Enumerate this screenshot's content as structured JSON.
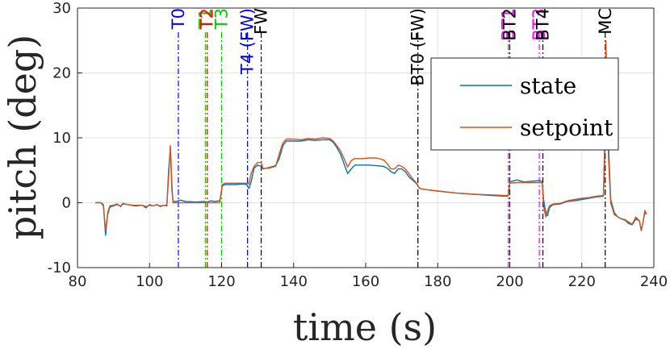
{
  "chart_data": {
    "type": "line",
    "title": "",
    "xlabel": "time (s)",
    "ylabel": "pitch (deg)",
    "xlim": [
      80,
      240
    ],
    "ylim": [
      -10,
      30
    ],
    "xticks": [
      80,
      100,
      120,
      140,
      160,
      180,
      200,
      220,
      240
    ],
    "yticks": [
      -10,
      0,
      10,
      20,
      30
    ],
    "xtick_labels": [
      "80",
      "100",
      "120",
      "140",
      "160",
      "180",
      "200",
      "220",
      "240"
    ],
    "ytick_labels": [
      "-10",
      "0",
      "10",
      "20",
      "30"
    ],
    "grid": true,
    "legend_position": "top-right",
    "series": [
      {
        "name": "state",
        "color": "#0072BD",
        "points": [
          [
            85,
            0
          ],
          [
            86.5,
            0
          ],
          [
            87.2,
            -0.3
          ],
          [
            87.8,
            -5
          ],
          [
            88.4,
            -1.5
          ],
          [
            89,
            -0.5
          ],
          [
            90,
            -0.4
          ],
          [
            91,
            -0.2
          ],
          [
            92,
            -0.6
          ],
          [
            92.6,
            -0.1
          ],
          [
            94,
            -0.3
          ],
          [
            96,
            -0.5
          ],
          [
            98,
            -0.4
          ],
          [
            99,
            -0.8
          ],
          [
            100,
            -0.3
          ],
          [
            101,
            -0.5
          ],
          [
            102,
            -0.3
          ],
          [
            103,
            -0.6
          ],
          [
            104,
            -0.4
          ],
          [
            104.8,
            -0.5
          ],
          [
            105.3,
            5
          ],
          [
            105.8,
            8.5
          ],
          [
            106.2,
            2
          ],
          [
            106.5,
            0.2
          ],
          [
            107.5,
            0.2
          ],
          [
            108.5,
            0.4
          ],
          [
            110,
            0.2
          ],
          [
            113,
            0.1
          ],
          [
            115,
            0.2
          ],
          [
            116,
            0.1
          ],
          [
            117,
            0.3
          ],
          [
            118,
            0.2
          ],
          [
            119.5,
            0.3
          ],
          [
            120.2,
            2.6
          ],
          [
            121,
            2.8
          ],
          [
            124,
            2.8
          ],
          [
            126,
            2.9
          ],
          [
            127,
            2.8
          ],
          [
            127.6,
            2.2
          ],
          [
            128.2,
            3.2
          ],
          [
            129,
            5.3
          ],
          [
            130,
            5.8
          ],
          [
            131,
            5.6
          ],
          [
            131.5,
            5.2
          ],
          [
            133,
            5.4
          ],
          [
            135,
            5.7
          ],
          [
            136,
            6.8
          ],
          [
            137,
            8.8
          ],
          [
            138,
            9.5
          ],
          [
            140,
            9.5
          ],
          [
            142,
            9.5
          ],
          [
            144,
            9.7
          ],
          [
            146,
            9.6
          ],
          [
            148,
            9.7
          ],
          [
            150,
            9.7
          ],
          [
            151,
            9.3
          ],
          [
            152,
            8.5
          ],
          [
            153,
            7.5
          ],
          [
            154,
            6
          ],
          [
            155,
            4.5
          ],
          [
            156,
            5.2
          ],
          [
            157,
            5.8
          ],
          [
            159,
            5.8
          ],
          [
            161,
            5.8
          ],
          [
            163,
            5.7
          ],
          [
            165,
            5.6
          ],
          [
            166,
            5.3
          ],
          [
            167,
            4.8
          ],
          [
            168,
            4.5
          ],
          [
            169,
            5.2
          ],
          [
            170,
            5.2
          ],
          [
            171,
            4.8
          ],
          [
            172,
            4
          ],
          [
            173,
            3.5
          ],
          [
            174,
            3
          ],
          [
            175,
            2.2
          ],
          [
            177,
            2
          ],
          [
            180,
            1.8
          ],
          [
            185,
            1.5
          ],
          [
            190,
            1.3
          ],
          [
            195,
            1.1
          ],
          [
            199,
            1
          ],
          [
            199.5,
            1
          ],
          [
            200,
            3.2
          ],
          [
            202,
            3.5
          ],
          [
            204,
            3.2
          ],
          [
            206,
            3.3
          ],
          [
            208,
            3.4
          ],
          [
            209,
            3.3
          ],
          [
            209.4,
            0.5
          ],
          [
            210,
            -1.5
          ],
          [
            210.5,
            -2
          ],
          [
            211,
            -0.8
          ],
          [
            212,
            -0.3
          ],
          [
            214,
            -0.2
          ],
          [
            216,
            0.2
          ],
          [
            218,
            0.3
          ],
          [
            220,
            0.5
          ],
          [
            222,
            0.7
          ],
          [
            224,
            0.9
          ],
          [
            226,
            1
          ],
          [
            226.3,
            8
          ],
          [
            226.7,
            23
          ],
          [
            227,
            17
          ],
          [
            227.4,
            9
          ],
          [
            228,
            0.5
          ],
          [
            229,
            -1.5
          ],
          [
            230,
            -2.2
          ],
          [
            231,
            -2.5
          ],
          [
            232,
            -2.7
          ],
          [
            233,
            -3.2
          ],
          [
            234,
            -3.4
          ],
          [
            235,
            -2.5
          ],
          [
            236,
            -2.8
          ],
          [
            236.5,
            -4.3
          ],
          [
            237,
            -3
          ],
          [
            237.5,
            -1.5
          ],
          [
            238,
            -1.8
          ]
        ]
      },
      {
        "name": "setpoint",
        "color": "#D95319",
        "points": [
          [
            85,
            0
          ],
          [
            86.5,
            0
          ],
          [
            87.2,
            -0.5
          ],
          [
            87.8,
            -4.2
          ],
          [
            88.4,
            -1.8
          ],
          [
            89,
            -0.7
          ],
          [
            90,
            -0.5
          ],
          [
            91,
            -0.3
          ],
          [
            92,
            -0.5
          ],
          [
            92.6,
            -0.2
          ],
          [
            94,
            -0.3
          ],
          [
            96,
            -0.4
          ],
          [
            98,
            -0.4
          ],
          [
            99,
            -0.6
          ],
          [
            100,
            -0.4
          ],
          [
            101,
            -0.5
          ],
          [
            102,
            -0.3
          ],
          [
            103,
            -0.5
          ],
          [
            104,
            -0.4
          ],
          [
            104.8,
            -0.4
          ],
          [
            105.3,
            4
          ],
          [
            105.8,
            8.8
          ],
          [
            106.2,
            3
          ],
          [
            106.5,
            0
          ],
          [
            107.5,
            0
          ],
          [
            108.5,
            0
          ],
          [
            110,
            0
          ],
          [
            113,
            0
          ],
          [
            115,
            0
          ],
          [
            116,
            0
          ],
          [
            117,
            0
          ],
          [
            118,
            0
          ],
          [
            119.5,
            0
          ],
          [
            120.2,
            2.8
          ],
          [
            121,
            3
          ],
          [
            124,
            3
          ],
          [
            126,
            3
          ],
          [
            127,
            3
          ],
          [
            127.6,
            2.9
          ],
          [
            128.2,
            4.5
          ],
          [
            129,
            5.6
          ],
          [
            130,
            6.2
          ],
          [
            131,
            6.2
          ],
          [
            131.5,
            5.3
          ],
          [
            133,
            5.3
          ],
          [
            135,
            5.6
          ],
          [
            136,
            7.5
          ],
          [
            137,
            9.2
          ],
          [
            138,
            9.8
          ],
          [
            140,
            9.8
          ],
          [
            142,
            9.7
          ],
          [
            144,
            9.9
          ],
          [
            146,
            9.8
          ],
          [
            148,
            10
          ],
          [
            150,
            9.9
          ],
          [
            151,
            9.5
          ],
          [
            152,
            8.8
          ],
          [
            153,
            8
          ],
          [
            154,
            6.8
          ],
          [
            155,
            5.5
          ],
          [
            156,
            6.5
          ],
          [
            157,
            6.8
          ],
          [
            159,
            6.8
          ],
          [
            161,
            6.9
          ],
          [
            163,
            6.9
          ],
          [
            165,
            6.6
          ],
          [
            166,
            6
          ],
          [
            167,
            5.2
          ],
          [
            168,
            5.2
          ],
          [
            169,
            5.8
          ],
          [
            170,
            5.6
          ],
          [
            171,
            5.2
          ],
          [
            172,
            4.5
          ],
          [
            173,
            3.7
          ],
          [
            174,
            3.1
          ],
          [
            175,
            2.2
          ],
          [
            177,
            2
          ],
          [
            180,
            1.8
          ],
          [
            185,
            1.5
          ],
          [
            190,
            1.3
          ],
          [
            195,
            1.2
          ],
          [
            199,
            1.1
          ],
          [
            199.5,
            1.1
          ],
          [
            200,
            3
          ],
          [
            202,
            3.1
          ],
          [
            204,
            3.1
          ],
          [
            206,
            3.1
          ],
          [
            208,
            3.1
          ],
          [
            209,
            3.1
          ],
          [
            209.4,
            -0.5
          ],
          [
            210,
            -2.2
          ],
          [
            210.5,
            -1.2
          ],
          [
            211,
            -0.5
          ],
          [
            212,
            -0.2
          ],
          [
            214,
            -0.1
          ],
          [
            216,
            0.3
          ],
          [
            218,
            0.5
          ],
          [
            220,
            0.7
          ],
          [
            222,
            0.8
          ],
          [
            224,
            1
          ],
          [
            226,
            1.1
          ],
          [
            226.3,
            6
          ],
          [
            226.7,
            25
          ],
          [
            227,
            18
          ],
          [
            227.4,
            7
          ],
          [
            228,
            0
          ],
          [
            229,
            -1.8
          ],
          [
            230,
            -2.2
          ],
          [
            231,
            -2.5
          ],
          [
            232,
            -2.6
          ],
          [
            233,
            -3
          ],
          [
            234,
            -3.3
          ],
          [
            235,
            -2.2
          ],
          [
            236,
            -2.8
          ],
          [
            236.5,
            -4.3
          ],
          [
            237,
            -3
          ],
          [
            237.5,
            -1.2
          ],
          [
            238,
            -1.8
          ]
        ]
      }
    ],
    "events": [
      {
        "label": "T0",
        "x": 108,
        "color": "#0000FF"
      },
      {
        "label": "T1",
        "x": 115.5,
        "color": "#00CC00"
      },
      {
        "label": "T2",
        "x": 116,
        "color": "#FF0000"
      },
      {
        "label": "T3",
        "x": 120,
        "color": "#00CC00"
      },
      {
        "label": "T4 (FW)",
        "x": 127.2,
        "color": "#0000FF"
      },
      {
        "label": "FW",
        "x": 131,
        "color": "#000000"
      },
      {
        "label": "BT0 (FW)",
        "x": 174.5,
        "color": "#000000"
      },
      {
        "label": "BT1",
        "x": 199.6,
        "color": "#FF00FF"
      },
      {
        "label": "BT2",
        "x": 200,
        "color": "#000000"
      },
      {
        "label": "BT3",
        "x": 208.2,
        "color": "#FF00FF"
      },
      {
        "label": "BT4",
        "x": 209.2,
        "color": "#000000"
      },
      {
        "label": "MC",
        "x": 226.5,
        "color": "#000000"
      }
    ]
  }
}
